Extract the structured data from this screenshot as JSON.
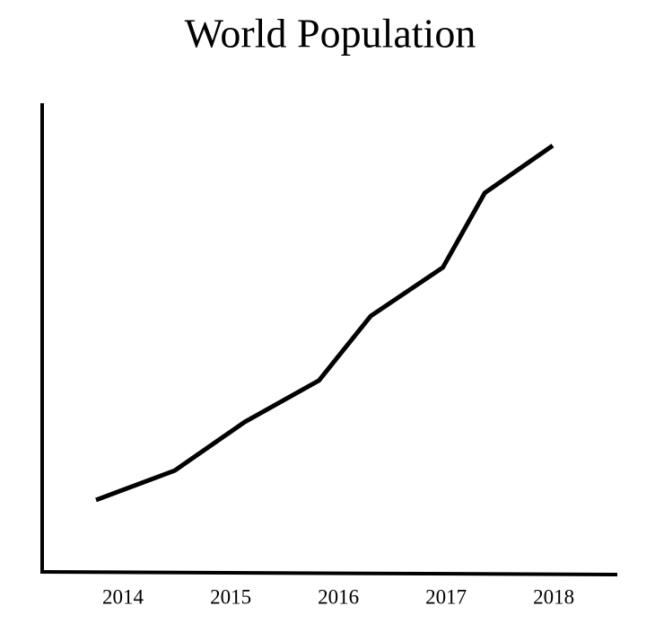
{
  "chart_data": {
    "type": "line",
    "title": "World Population",
    "x": [
      2013.75,
      2014.48,
      2015.13,
      2015.82,
      2016.3,
      2016.97,
      2017.36,
      2017.99
    ],
    "series": [
      {
        "color": "#000000",
        "values": [
          15.4,
          21.7,
          32.1,
          41.0,
          54.8,
          65.2,
          81.2,
          91.3
        ]
      }
    ],
    "xlim": [
      2013.25,
      2018.59
    ],
    "xticks": [
      2014,
      2015,
      2016,
      2017,
      2018
    ],
    "ylim": [
      0,
      100
    ],
    "grid": false
  }
}
